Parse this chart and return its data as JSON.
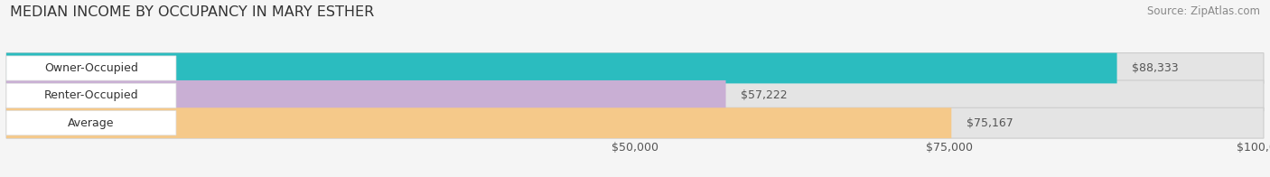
{
  "title": "MEDIAN INCOME BY OCCUPANCY IN MARY ESTHER",
  "source": "Source: ZipAtlas.com",
  "categories": [
    "Owner-Occupied",
    "Renter-Occupied",
    "Average"
  ],
  "values": [
    88333,
    57222,
    75167
  ],
  "bar_colors": [
    "#2bbcbf",
    "#c9afd4",
    "#f5c98a"
  ],
  "bar_labels": [
    "$88,333",
    "$57,222",
    "$75,167"
  ],
  "xlim": [
    0,
    100000
  ],
  "background_color": "#f5f5f5",
  "bar_bg_color": "#e4e4e4",
  "title_fontsize": 11.5,
  "label_fontsize": 9,
  "value_fontsize": 9,
  "source_fontsize": 8.5
}
